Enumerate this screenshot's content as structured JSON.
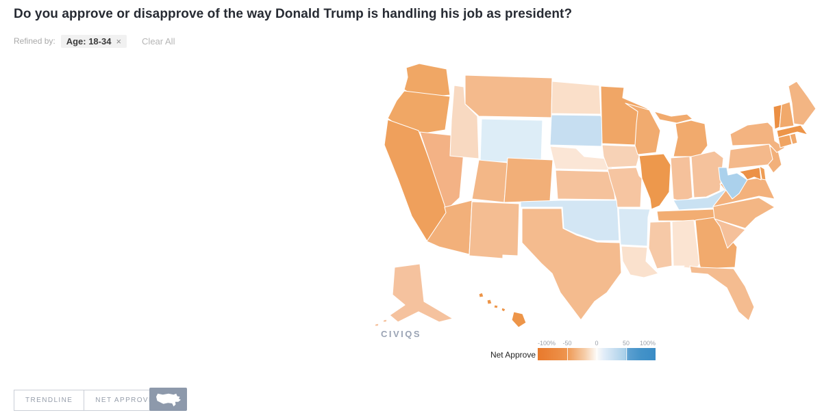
{
  "page": {
    "title": "Do you approve or disapprove of the way Donald Trump is handling his job as president?"
  },
  "filters": {
    "refined_by_label": "Refined by:",
    "chips": [
      {
        "label": "Age: 18-34",
        "remove_icon": "×"
      }
    ],
    "clear_all_label": "Clear All"
  },
  "branding": {
    "logo_text": "CIVIQS",
    "logo_color": "#9aa3b4"
  },
  "legend": {
    "label": "Net Approve",
    "ticks": [
      "-100%",
      "-50",
      "0",
      "50",
      "100%"
    ],
    "scale": {
      "min": -100,
      "max": 100,
      "negative_color": "#e87a2c",
      "midpoint_color": "#fdfbf8",
      "positive_color": "#3a8cc6"
    }
  },
  "toolbar": {
    "buttons": [
      {
        "label": "TRENDLINE"
      },
      {
        "label": "NET APPROVE"
      }
    ],
    "map_thumbnail_icon": "us-map-silhouette"
  },
  "chart_data": {
    "type": "heatmap",
    "subtype": "us-state-choropleth",
    "title": "Do you approve or disapprove of the way Donald Trump is handling his job as president?",
    "filter": "Age: 18-34",
    "legend_label": "Net Approve",
    "color_domain": [
      -100,
      100
    ],
    "legend_position": "bottom-right",
    "states": [
      {
        "abbr": "WA",
        "name": "Washington",
        "fill": "#f0a765",
        "net_approve_est": -45
      },
      {
        "abbr": "OR",
        "name": "Oregon",
        "fill": "#f0a765",
        "net_approve_est": -45
      },
      {
        "abbr": "CA",
        "name": "California",
        "fill": "#efa05c",
        "net_approve_est": -52
      },
      {
        "abbr": "NV",
        "name": "Nevada",
        "fill": "#f3b285",
        "net_approve_est": -33
      },
      {
        "abbr": "ID",
        "name": "Idaho",
        "fill": "#f8d9c1",
        "net_approve_est": -10
      },
      {
        "abbr": "MT",
        "name": "Montana",
        "fill": "#f4ba8c",
        "net_approve_est": -28
      },
      {
        "abbr": "WY",
        "name": "Wyoming",
        "fill": "#ddedf7",
        "net_approve_est": 3
      },
      {
        "abbr": "UT",
        "name": "Utah",
        "fill": "#f3b787",
        "net_approve_est": -31
      },
      {
        "abbr": "CO",
        "name": "Colorado",
        "fill": "#f2af78",
        "net_approve_est": -36
      },
      {
        "abbr": "AZ",
        "name": "Arizona",
        "fill": "#f2b07a",
        "net_approve_est": -35
      },
      {
        "abbr": "NM",
        "name": "New Mexico",
        "fill": "#f4bd92",
        "net_approve_est": -26
      },
      {
        "abbr": "ND",
        "name": "North Dakota",
        "fill": "#fadfc9",
        "net_approve_est": -7
      },
      {
        "abbr": "SD",
        "name": "South Dakota",
        "fill": "#c6def1",
        "net_approve_est": 11
      },
      {
        "abbr": "NE",
        "name": "Nebraska",
        "fill": "#fbe6d6",
        "net_approve_est": -4
      },
      {
        "abbr": "KS",
        "name": "Kansas",
        "fill": "#f5c29c",
        "net_approve_est": -22
      },
      {
        "abbr": "OK",
        "name": "Oklahoma",
        "fill": "#d3e6f4",
        "net_approve_est": 6
      },
      {
        "abbr": "TX",
        "name": "Texas",
        "fill": "#f4bb8e",
        "net_approve_est": -27
      },
      {
        "abbr": "MN",
        "name": "Minnesota",
        "fill": "#f0a666",
        "net_approve_est": -46
      },
      {
        "abbr": "IA",
        "name": "Iowa",
        "fill": "#f7d2b6",
        "net_approve_est": -12
      },
      {
        "abbr": "MO",
        "name": "Missouri",
        "fill": "#f6c5a1",
        "net_approve_est": -20
      },
      {
        "abbr": "AR",
        "name": "Arkansas",
        "fill": "#d8e9f5",
        "net_approve_est": 5
      },
      {
        "abbr": "LA",
        "name": "Louisiana",
        "fill": "#fae1cd",
        "net_approve_est": -6
      },
      {
        "abbr": "WI",
        "name": "Wisconsin",
        "fill": "#f1ab6f",
        "net_approve_est": -40
      },
      {
        "abbr": "IL",
        "name": "Illinois",
        "fill": "#ed984c",
        "net_approve_est": -58
      },
      {
        "abbr": "MI",
        "name": "Michigan",
        "fill": "#f1aa6d",
        "net_approve_est": -41
      },
      {
        "abbr": "IN",
        "name": "Indiana",
        "fill": "#f5c19b",
        "net_approve_est": -21
      },
      {
        "abbr": "OH",
        "name": "Ohio",
        "fill": "#f5c29c",
        "net_approve_est": -22
      },
      {
        "abbr": "KY",
        "name": "Kentucky",
        "fill": "#c9e1f2",
        "net_approve_est": 10
      },
      {
        "abbr": "TN",
        "name": "Tennessee",
        "fill": "#f2ad72",
        "net_approve_est": -38
      },
      {
        "abbr": "MS",
        "name": "Mississippi",
        "fill": "#f6c9a7",
        "net_approve_est": -18
      },
      {
        "abbr": "AL",
        "name": "Alabama",
        "fill": "#fbe4d2",
        "net_approve_est": -5
      },
      {
        "abbr": "GA",
        "name": "Georgia",
        "fill": "#f1aa6d",
        "net_approve_est": -40
      },
      {
        "abbr": "FL",
        "name": "Florida",
        "fill": "#f4bc90",
        "net_approve_est": -26
      },
      {
        "abbr": "SC",
        "name": "South Carolina",
        "fill": "#f5c09a",
        "net_approve_est": -23
      },
      {
        "abbr": "NC",
        "name": "North Carolina",
        "fill": "#f3b684",
        "net_approve_est": -30
      },
      {
        "abbr": "VA",
        "name": "Virginia",
        "fill": "#f3b17c",
        "net_approve_est": -34
      },
      {
        "abbr": "WV",
        "name": "West Virginia",
        "fill": "#abd1ec",
        "net_approve_est": 20
      },
      {
        "abbr": "MD",
        "name": "Maryland",
        "fill": "#ec9146",
        "net_approve_est": -68
      },
      {
        "abbr": "DE",
        "name": "Delaware",
        "fill": "#ee9d55",
        "net_approve_est": -52
      },
      {
        "abbr": "NJ",
        "name": "New Jersey",
        "fill": "#f2b07a",
        "net_approve_est": -35
      },
      {
        "abbr": "PA",
        "name": "Pennsylvania",
        "fill": "#f4b98b",
        "net_approve_est": -28
      },
      {
        "abbr": "NY",
        "name": "New York",
        "fill": "#f3b380",
        "net_approve_est": -33
      },
      {
        "abbr": "CT",
        "name": "Connecticut",
        "fill": "#f0a462",
        "net_approve_est": -48
      },
      {
        "abbr": "RI",
        "name": "Rhode Island",
        "fill": "#f1a96b",
        "net_approve_est": -42
      },
      {
        "abbr": "MA",
        "name": "Massachusetts",
        "fill": "#ed9549",
        "net_approve_est": -62
      },
      {
        "abbr": "VT",
        "name": "Vermont",
        "fill": "#eb8f43",
        "net_approve_est": -70
      },
      {
        "abbr": "NH",
        "name": "New Hampshire",
        "fill": "#f1a96b",
        "net_approve_est": -42
      },
      {
        "abbr": "ME",
        "name": "Maine",
        "fill": "#f3b583",
        "net_approve_est": -31
      },
      {
        "abbr": "AK",
        "name": "Alaska",
        "fill": "#f5c29e",
        "net_approve_est": -21
      },
      {
        "abbr": "HI",
        "name": "Hawaii",
        "fill": "#ed9549",
        "net_approve_est": -62
      }
    ]
  }
}
